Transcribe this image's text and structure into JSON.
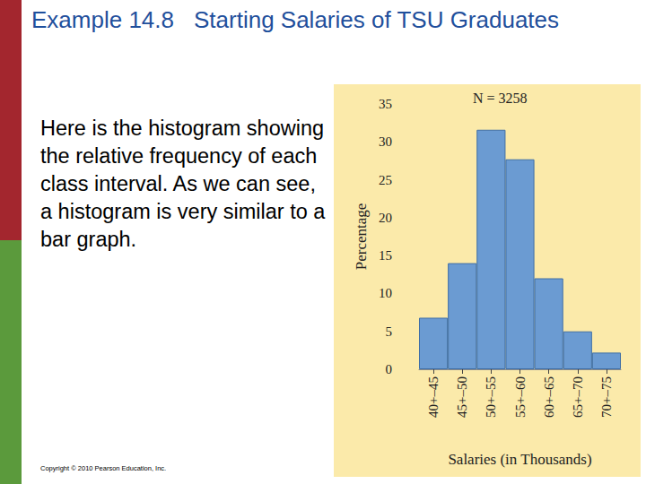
{
  "slide": {
    "title_number": "Example 14.8",
    "title_text": "Starting Salaries of TSU Graduates",
    "body": "Here is the histogram showing the relative frequency of each class interval. As we can see, a histogram is very similar to a bar graph.",
    "footer": "Copyright © 2010 Pearson Education, Inc."
  },
  "chart_data": {
    "type": "bar",
    "title": "N = 3258",
    "x_label": "Salaries (in Thousands)",
    "y_label": "Percentage",
    "categories": [
      "40+–45",
      "45+–50",
      "50+–55",
      "55+–60",
      "60+–65",
      "65+–70",
      "70+–75"
    ],
    "values": [
      6.8,
      14,
      31.6,
      27.7,
      12,
      5,
      2.2
    ],
    "color": "#6b9bd2",
    "ylim": [
      0,
      35
    ],
    "yticks": [
      0,
      5,
      10,
      15,
      20,
      25,
      30,
      35
    ],
    "grid": false
  }
}
